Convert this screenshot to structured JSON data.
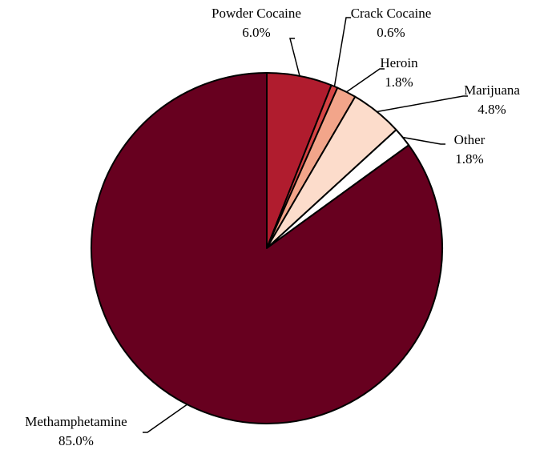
{
  "chart_data": {
    "type": "pie",
    "title": "",
    "start_angle_deg": 0,
    "direction": "clockwise",
    "slices": [
      {
        "label": "Powder Cocaine",
        "value": 6.0,
        "value_label": "6.0%",
        "color": "#b01c2e"
      },
      {
        "label": "Crack Cocaine",
        "value": 0.6,
        "value_label": "0.6%",
        "color": "#d64545"
      },
      {
        "label": "Heroin",
        "value": 1.8,
        "value_label": "1.8%",
        "color": "#f2a58a"
      },
      {
        "label": "Marijuana",
        "value": 4.8,
        "value_label": "4.8%",
        "color": "#fcdccb"
      },
      {
        "label": "Other",
        "value": 1.8,
        "value_label": "1.8%",
        "color": "#ffffff"
      },
      {
        "label": "Methamphetamine",
        "value": 85.0,
        "value_label": "85.0%",
        "color": "#67001f"
      }
    ]
  }
}
